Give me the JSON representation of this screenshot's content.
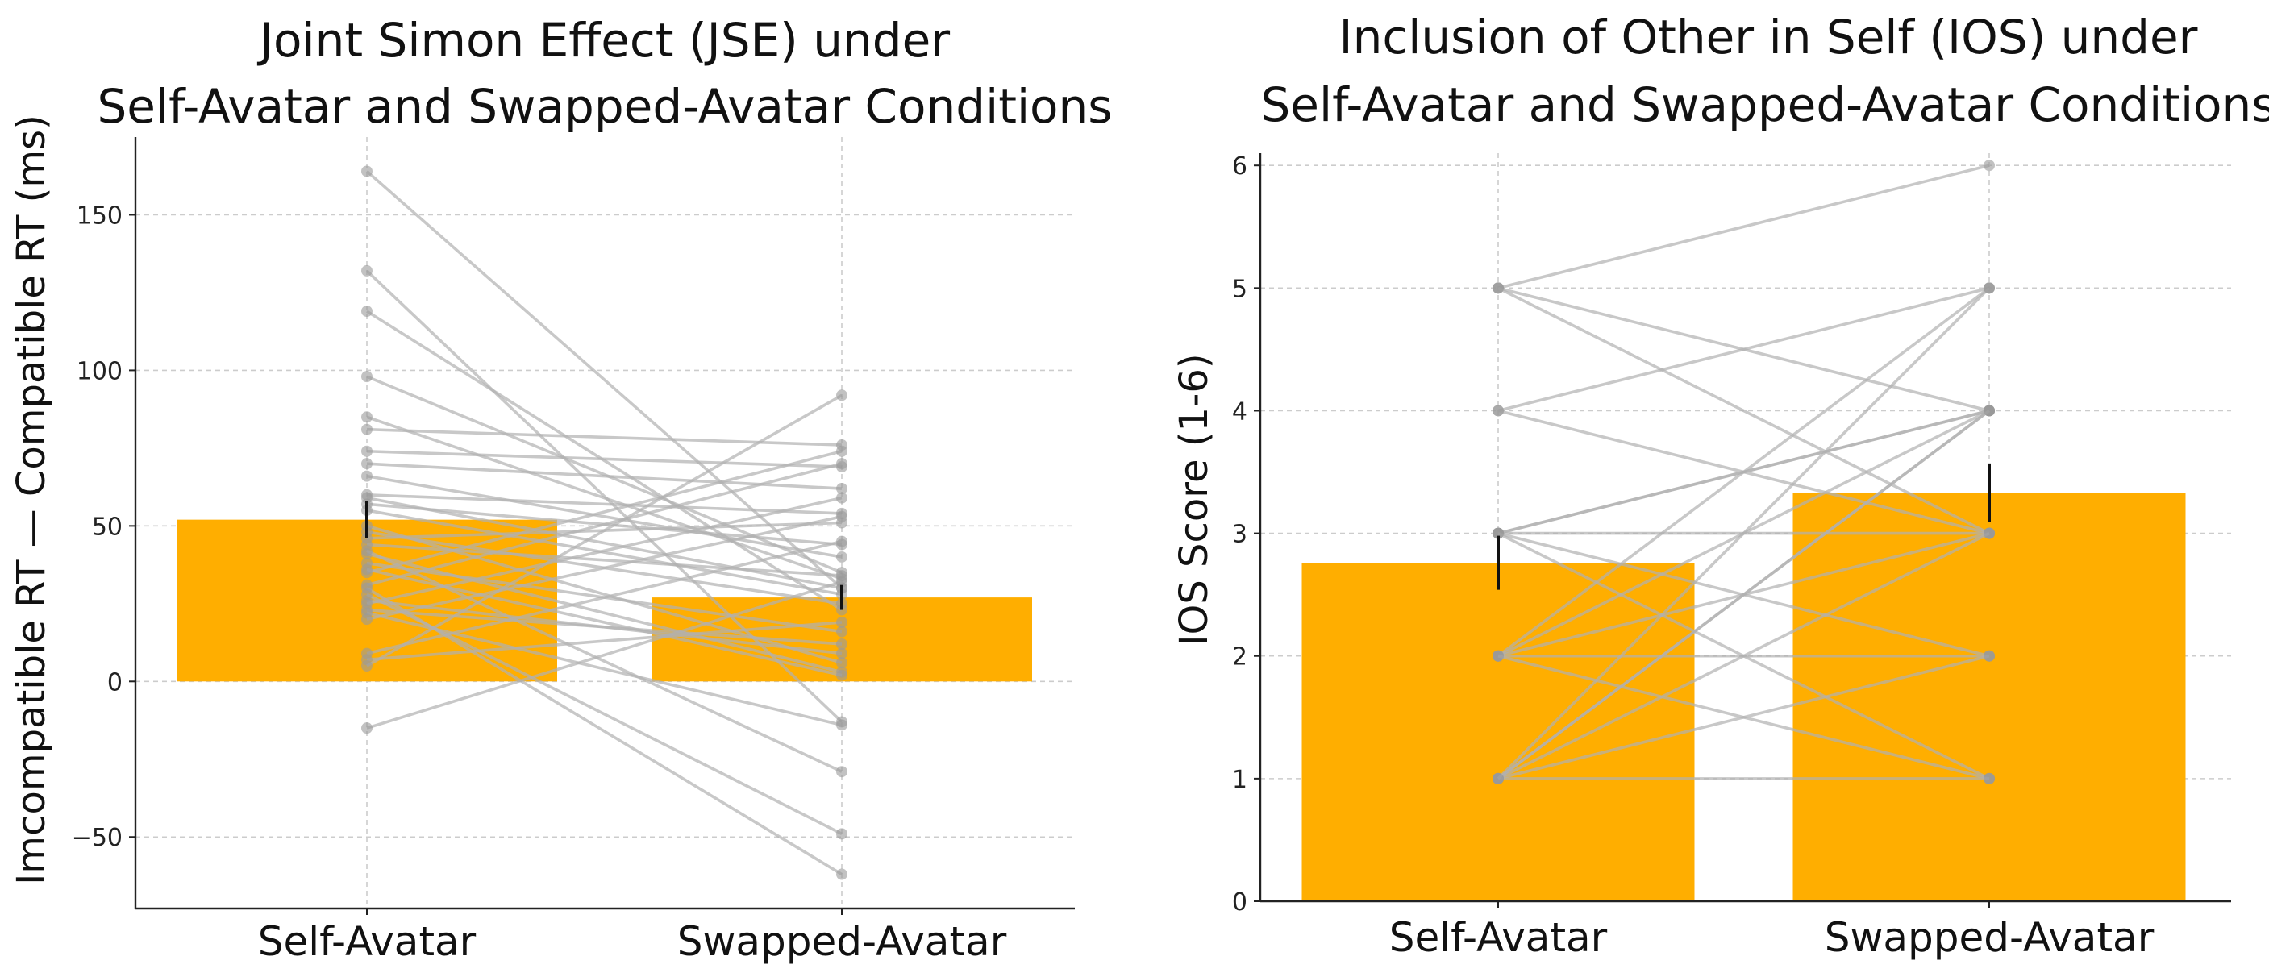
{
  "chart_data": [
    {
      "type": "bar",
      "title": "Joint Simon Effect (JSE) under\nSelf-Avatar and Swapped-Avatar Conditions",
      "ylabel": "Imcompatible RT — Compatible RT  (ms)",
      "xlabel": "",
      "categories": [
        "Self-Avatar",
        "Swapped-Avatar"
      ],
      "values": [
        52,
        27
      ],
      "error": [
        6,
        4
      ],
      "ylim": [
        -73,
        175
      ],
      "yticks": [
        -50,
        0,
        50,
        100,
        150
      ],
      "grid": true,
      "bar_color": "#FFAE00",
      "line_color": "#b0b0b0",
      "pairs": [
        [
          164,
          30
        ],
        [
          132,
          -13
        ],
        [
          119,
          23
        ],
        [
          98,
          35
        ],
        [
          85,
          33
        ],
        [
          81,
          76
        ],
        [
          74,
          69
        ],
        [
          70,
          62
        ],
        [
          66,
          40
        ],
        [
          60,
          54
        ],
        [
          59,
          30
        ],
        [
          57,
          44
        ],
        [
          55,
          28
        ],
        [
          50,
          6
        ],
        [
          48,
          25
        ],
        [
          46,
          51
        ],
        [
          44,
          34
        ],
        [
          41,
          3
        ],
        [
          38,
          16
        ],
        [
          35,
          74
        ],
        [
          31,
          70
        ],
        [
          26,
          9
        ],
        [
          25,
          59
        ],
        [
          23,
          12
        ],
        [
          22,
          -14
        ],
        [
          9,
          45
        ],
        [
          7,
          19
        ],
        [
          5,
          92
        ],
        [
          -15,
          32
        ],
        [
          30,
          -62
        ],
        [
          28,
          -49
        ],
        [
          42,
          -29
        ],
        [
          36,
          2
        ],
        [
          20,
          53
        ]
      ]
    },
    {
      "type": "bar",
      "title": "Inclusion of Other in Self (IOS)  under\nSelf-Avatar and Swapped-Avatar Conditions",
      "ylabel": "IOS Score (1-6)",
      "xlabel": "",
      "categories": [
        "Self-Avatar",
        "Swapped-Avatar"
      ],
      "values": [
        2.76,
        3.33
      ],
      "error": [
        0.22,
        0.24
      ],
      "ylim": [
        0,
        6.1
      ],
      "yticks": [
        0,
        1,
        2,
        3,
        4,
        5,
        6
      ],
      "grid": true,
      "bar_color": "#FFAE00",
      "line_color": "#b0b0b0",
      "pairs": [
        [
          5,
          6
        ],
        [
          5,
          4
        ],
        [
          5,
          3
        ],
        [
          4,
          5
        ],
        [
          4,
          3
        ],
        [
          3,
          4
        ],
        [
          3,
          4
        ],
        [
          3,
          3
        ],
        [
          3,
          2
        ],
        [
          3,
          1
        ],
        [
          2,
          5
        ],
        [
          2,
          4
        ],
        [
          2,
          3
        ],
        [
          2,
          2
        ],
        [
          2,
          1
        ],
        [
          1,
          4
        ],
        [
          1,
          4
        ],
        [
          1,
          3
        ],
        [
          1,
          2
        ],
        [
          1,
          1
        ],
        [
          1,
          5
        ]
      ]
    }
  ]
}
